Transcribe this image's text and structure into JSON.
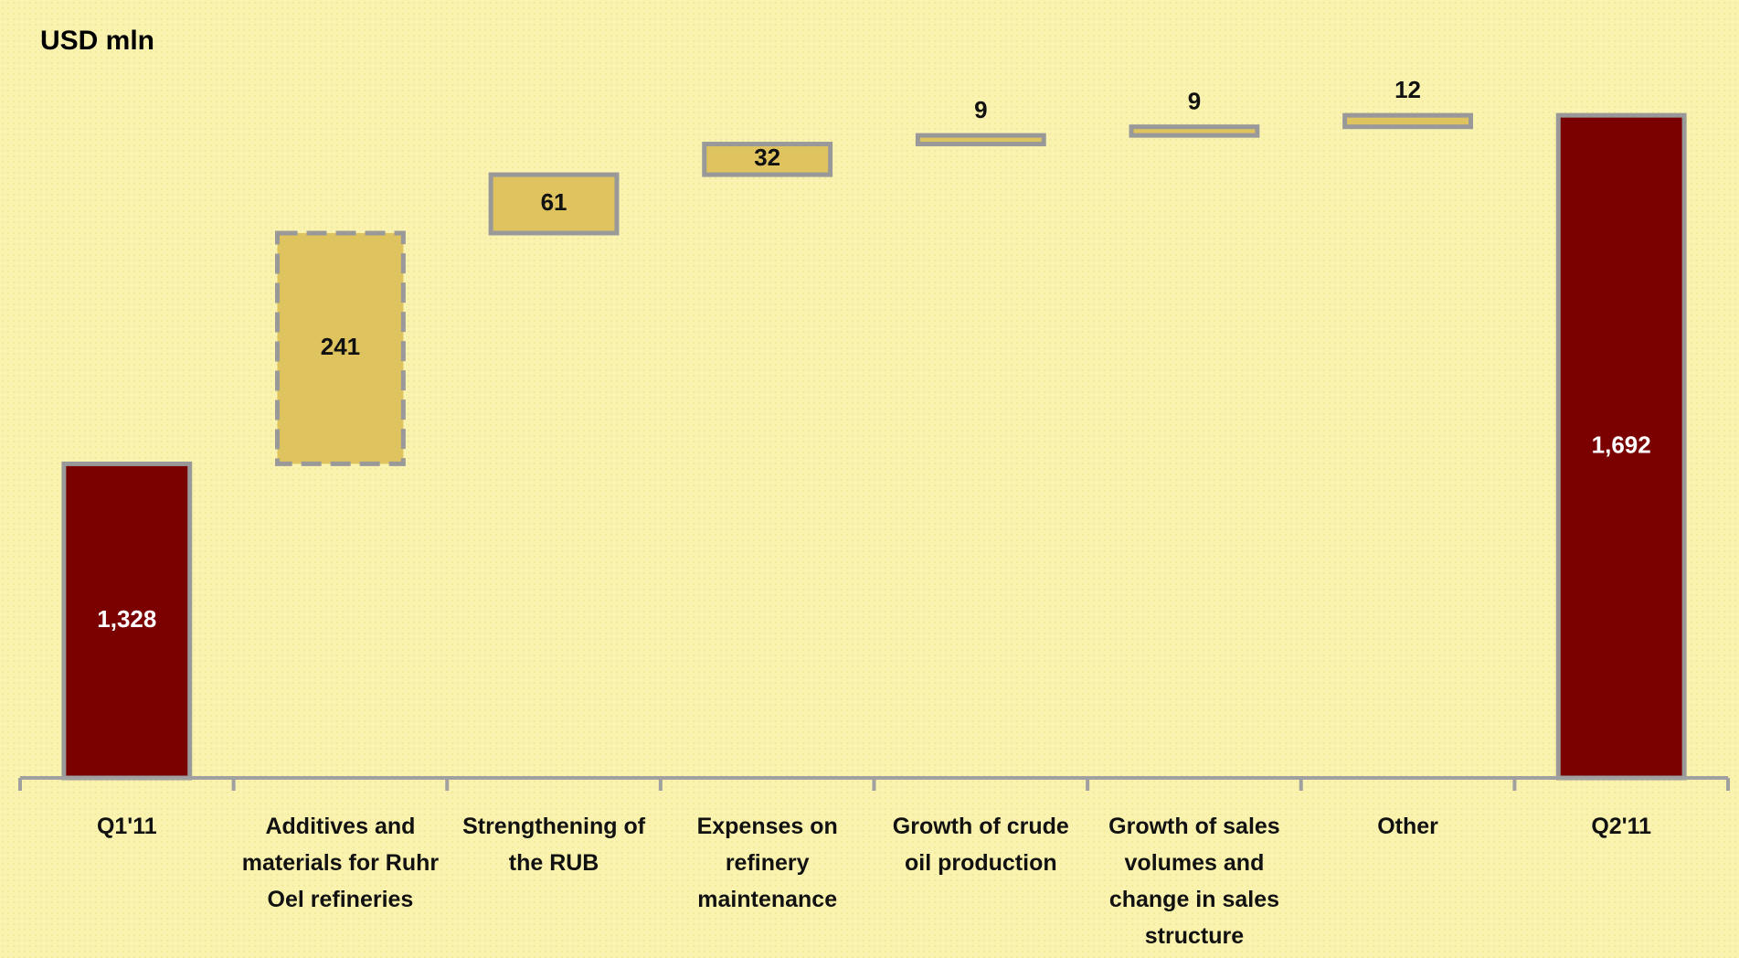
{
  "chart_data": {
    "type": "waterfall",
    "title": "USD mln",
    "categories": [
      "Q1'11",
      "Additives and materials for Ruhr Oel refineries",
      "Strengthening of the RUB",
      "Expenses on refinery maintenance",
      "Growth of crude oil production",
      "Growth of sales volumes and change in sales structure",
      "Other",
      "Q2'11"
    ],
    "values": [
      1328,
      241,
      61,
      32,
      9,
      9,
      12,
      1692
    ],
    "value_labels": [
      "1,328",
      "241",
      "61",
      "32",
      "9",
      "9",
      "12",
      "1,692"
    ],
    "totals": [
      0,
      7
    ],
    "dashed": [
      1
    ],
    "total_color": "#7b0000",
    "delta_color": "#dfc35e",
    "ylim": [
      1000,
      1800
    ]
  }
}
